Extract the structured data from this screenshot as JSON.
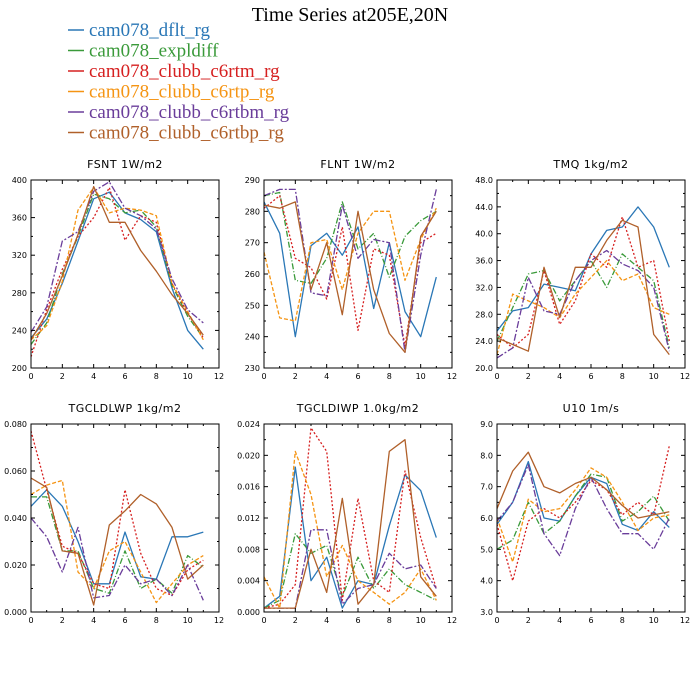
{
  "figure": {
    "title": "Time Series at205E,20N"
  },
  "colors": {
    "cam078_dflt_rg": "#2a77b6",
    "cam078_expldiff": "#3a9a3a",
    "cam078_clubb_c6rtm_rg": "#d62020",
    "cam078_clubb_c6rtp_rg": "#f59413",
    "cam078_clubb_c6rtbm_rg": "#6a3d9a",
    "cam078_clubb_c6rtbp_rg": "#b0602a"
  },
  "legend": [
    {
      "name": "cam078_dflt_rg",
      "color": "#2a77b6",
      "dash": ""
    },
    {
      "name": "cam078_expldiff",
      "color": "#3a9a3a",
      "dash": "6,2,1,2"
    },
    {
      "name": "cam078_clubb_c6rtm_rg",
      "color": "#d62020",
      "dash": "2,2"
    },
    {
      "name": "cam078_clubb_c6rtp_rg",
      "color": "#f59413",
      "dash": "4,2"
    },
    {
      "name": "cam078_clubb_c6rtbm_rg",
      "color": "#6a3d9a",
      "dash": "7,2,2,2"
    },
    {
      "name": "cam078_clubb_c6rtbp_rg",
      "color": "#b0602a",
      "dash": ""
    }
  ],
  "chart_data": [
    {
      "type": "line",
      "title": "FSNT   1W/m2",
      "x": [
        0,
        1,
        2,
        3,
        4,
        5,
        6,
        7,
        8,
        9,
        10,
        11
      ],
      "xlim": [
        0,
        12
      ],
      "xticks": [
        0,
        2,
        4,
        6,
        8,
        10,
        12
      ],
      "ylim": [
        200,
        400
      ],
      "yticks": [
        200,
        240,
        280,
        320,
        360,
        400
      ],
      "ytick_labels": [
        "200",
        "240",
        "280",
        "320",
        "360",
        "400"
      ],
      "series": [
        {
          "name": "cam078_dflt_rg",
          "values": [
            232,
            252,
            290,
            335,
            380,
            387,
            365,
            358,
            345,
            285,
            240,
            220
          ]
        },
        {
          "name": "cam078_expldiff",
          "values": [
            225,
            248,
            300,
            340,
            385,
            380,
            365,
            368,
            350,
            288,
            255,
            232
          ]
        },
        {
          "name": "cam078_clubb_c6rtm_rg",
          "values": [
            212,
            262,
            305,
            340,
            360,
            392,
            336,
            362,
            355,
            290,
            258,
            232
          ]
        },
        {
          "name": "cam078_clubb_c6rtp_rg",
          "values": [
            230,
            245,
            292,
            368,
            392,
            365,
            370,
            368,
            362,
            290,
            260,
            230
          ]
        },
        {
          "name": "cam078_clubb_c6rtbm_rg",
          "values": [
            238,
            265,
            335,
            345,
            388,
            398,
            370,
            362,
            348,
            295,
            262,
            248
          ]
        },
        {
          "name": "cam078_clubb_c6rtbp_rg",
          "values": [
            230,
            258,
            298,
            342,
            393,
            355,
            355,
            325,
            303,
            278,
            258,
            235
          ]
        }
      ]
    },
    {
      "type": "line",
      "title": "FLNT   1W/m2",
      "x": [
        0,
        1,
        2,
        3,
        4,
        5,
        6,
        7,
        8,
        9,
        10,
        11
      ],
      "xlim": [
        0,
        12
      ],
      "xticks": [
        0,
        2,
        4,
        6,
        8,
        10,
        12
      ],
      "ylim": [
        230,
        290
      ],
      "yticks": [
        230,
        240,
        250,
        260,
        270,
        280,
        290
      ],
      "ytick_labels": [
        "230",
        "240",
        "250",
        "260",
        "270",
        "280",
        "290"
      ],
      "series": [
        {
          "name": "cam078_dflt_rg",
          "values": [
            283,
            273,
            240,
            269,
            273,
            266,
            275,
            249,
            270,
            248,
            240,
            259
          ]
        },
        {
          "name": "cam078_expldiff",
          "values": [
            285,
            286,
            258,
            257,
            265,
            283,
            268,
            273,
            259,
            272,
            277,
            280
          ]
        },
        {
          "name": "cam078_clubb_c6rtm_rg",
          "values": [
            281,
            285,
            265,
            262,
            252,
            275,
            242,
            268,
            266,
            237,
            270,
            273
          ]
        },
        {
          "name": "cam078_clubb_c6rtp_rg",
          "values": [
            267,
            246,
            245,
            270,
            271,
            255,
            273,
            280,
            280,
            258,
            271,
            281
          ]
        },
        {
          "name": "cam078_clubb_c6rtbm_rg",
          "values": [
            285,
            287,
            287,
            254,
            253,
            282,
            265,
            271,
            270,
            235,
            266,
            287
          ]
        },
        {
          "name": "cam078_clubb_c6rtbp_rg",
          "values": [
            282,
            281,
            283,
            255,
            270,
            247,
            280,
            255,
            241,
            235,
            272,
            280
          ]
        }
      ]
    },
    {
      "type": "line",
      "title": "TMQ   1kg/m2",
      "x": [
        0,
        1,
        2,
        3,
        4,
        5,
        6,
        7,
        8,
        9,
        10,
        11
      ],
      "xlim": [
        0,
        12
      ],
      "xticks": [
        0,
        2,
        4,
        6,
        8,
        10,
        12
      ],
      "ylim": [
        20,
        48
      ],
      "yticks": [
        20,
        24,
        28,
        32,
        36,
        40,
        44,
        48
      ],
      "ytick_labels": [
        "20.0",
        "24.0",
        "28.0",
        "32.0",
        "36.0",
        "40.0",
        "44.0",
        "48.0"
      ],
      "series": [
        {
          "name": "cam078_dflt_rg",
          "values": [
            25.5,
            28.5,
            29,
            32.5,
            32,
            31.5,
            37,
            40.5,
            41,
            44,
            41,
            35
          ]
        },
        {
          "name": "cam078_expldiff",
          "values": [
            24,
            29,
            34,
            34.5,
            30,
            33,
            36,
            32,
            37,
            35,
            33,
            23
          ]
        },
        {
          "name": "cam078_clubb_c6rtm_rg",
          "values": [
            25,
            23,
            25,
            34.5,
            26.5,
            30,
            37,
            35,
            42.5,
            35,
            36,
            24
          ]
        },
        {
          "name": "cam078_clubb_c6rtp_rg",
          "values": [
            22,
            31,
            30,
            29,
            27.5,
            31,
            33.5,
            36,
            33,
            34,
            29,
            28
          ]
        },
        {
          "name": "cam078_clubb_c6rtbm_rg",
          "values": [
            21.5,
            23,
            33.5,
            28.5,
            28,
            33,
            36,
            37.5,
            35.5,
            34.5,
            32,
            22.5
          ]
        },
        {
          "name": "cam078_clubb_c6rtbp_rg",
          "values": [
            24.5,
            23.5,
            22.5,
            35,
            27.5,
            35,
            35,
            39,
            42,
            41,
            25,
            22
          ]
        }
      ]
    },
    {
      "type": "line",
      "title": "TGCLDLWP   1kg/m2",
      "x": [
        0,
        1,
        2,
        3,
        4,
        5,
        6,
        7,
        8,
        9,
        10,
        11
      ],
      "xlim": [
        0,
        12
      ],
      "xticks": [
        0,
        2,
        4,
        6,
        8,
        10,
        12
      ],
      "ylim": [
        0,
        0.08
      ],
      "yticks": [
        0,
        0.02,
        0.04,
        0.06,
        0.08
      ],
      "ytick_labels": [
        "0.000",
        "0.020",
        "0.040",
        "0.060",
        "0.080"
      ],
      "series": [
        {
          "name": "cam078_dflt_rg",
          "values": [
            0.045,
            0.052,
            0.045,
            0.03,
            0.012,
            0.012,
            0.034,
            0.015,
            0.014,
            0.032,
            0.032,
            0.034
          ]
        },
        {
          "name": "cam078_expldiff",
          "values": [
            0.049,
            0.049,
            0.026,
            0.026,
            0.01,
            0.008,
            0.026,
            0.01,
            0.014,
            0.008,
            0.024,
            0.019
          ]
        },
        {
          "name": "cam078_clubb_c6rtm_rg",
          "values": [
            0.077,
            0.052,
            0.028,
            0.025,
            0.012,
            0.01,
            0.052,
            0.025,
            0.01,
            0.007,
            0.018,
            0.022
          ]
        },
        {
          "name": "cam078_clubb_c6rtp_rg",
          "values": [
            0.05,
            0.054,
            0.056,
            0.017,
            0.01,
            0.026,
            0.03,
            0.017,
            0.004,
            0.012,
            0.02,
            0.024
          ]
        },
        {
          "name": "cam078_clubb_c6rtbm_rg",
          "values": [
            0.04,
            0.032,
            0.017,
            0.036,
            0.006,
            0.007,
            0.02,
            0.012,
            0.014,
            0.007,
            0.02,
            0.005
          ]
        },
        {
          "name": "cam078_clubb_c6rtbp_rg",
          "values": [
            0.057,
            0.053,
            0.026,
            0.025,
            0.003,
            0.037,
            0.043,
            0.05,
            0.046,
            0.036,
            0.014,
            0.02
          ]
        }
      ]
    },
    {
      "type": "line",
      "title": "TGCLDIWP   1.0kg/m2",
      "x": [
        0,
        1,
        2,
        3,
        4,
        5,
        6,
        7,
        8,
        9,
        10,
        11
      ],
      "xlim": [
        0,
        12
      ],
      "xticks": [
        0,
        2,
        4,
        6,
        8,
        10,
        12
      ],
      "ylim": [
        0,
        0.024
      ],
      "yticks": [
        0,
        0.004,
        0.008,
        0.012,
        0.016,
        0.02,
        0.024
      ],
      "ytick_labels": [
        "0.000",
        "0.004",
        "0.008",
        "0.012",
        "0.016",
        "0.020",
        "0.024"
      ],
      "series": [
        {
          "name": "cam078_dflt_rg",
          "values": [
            0.0005,
            0.002,
            0.0185,
            0.004,
            0.007,
            0.0005,
            0.004,
            0.0035,
            0.011,
            0.0175,
            0.0155,
            0.0095
          ]
        },
        {
          "name": "cam078_expldiff",
          "values": [
            0.0005,
            0.0015,
            0.01,
            0.0075,
            0.0085,
            0.002,
            0.007,
            0.003,
            0.0055,
            0.0035,
            0.0025,
            0.0015
          ]
        },
        {
          "name": "cam078_clubb_c6rtm_rg",
          "values": [
            0.0005,
            0.001,
            0.0035,
            0.0235,
            0.0205,
            0.0015,
            0.0145,
            0.004,
            0.0025,
            0.018,
            0.0095,
            0.003
          ]
        },
        {
          "name": "cam078_clubb_c6rtp_rg",
          "values": [
            0.0045,
            0.0005,
            0.0205,
            0.015,
            0.0045,
            0.0085,
            0.004,
            0.0025,
            0.001,
            0.0025,
            0.0055,
            0.0015
          ]
        },
        {
          "name": "cam078_clubb_c6rtbm_rg",
          "values": [
            0.0005,
            0.0005,
            0.0005,
            0.0105,
            0.0105,
            0.001,
            0.003,
            0.0035,
            0.0075,
            0.0055,
            0.006,
            0.003
          ]
        },
        {
          "name": "cam078_clubb_c6rtbp_rg",
          "values": [
            0.0005,
            0.0005,
            0.0005,
            0.008,
            0.0025,
            0.0145,
            0.001,
            0.0035,
            0.0205,
            0.022,
            0.0045,
            0.002
          ]
        }
      ]
    },
    {
      "type": "line",
      "title": "U10   1m/s",
      "x": [
        0,
        1,
        2,
        3,
        4,
        5,
        6,
        7,
        8,
        9,
        10,
        11
      ],
      "xlim": [
        0,
        12
      ],
      "xticks": [
        0,
        2,
        4,
        6,
        8,
        10,
        12
      ],
      "ylim": [
        3,
        9
      ],
      "yticks": [
        3,
        4,
        5,
        6,
        7,
        8,
        9
      ],
      "ytick_labels": [
        "3.0",
        "4.0",
        "5.0",
        "6.0",
        "7.0",
        "8.0",
        "9.0"
      ],
      "series": [
        {
          "name": "cam078_dflt_rg",
          "values": [
            5.8,
            6.5,
            7.8,
            6.0,
            5.9,
            6.7,
            7.3,
            7.1,
            5.8,
            5.6,
            6.2,
            5.7
          ]
        },
        {
          "name": "cam078_expldiff",
          "values": [
            5.0,
            5.3,
            6.5,
            5.5,
            5.9,
            6.7,
            7.4,
            7.3,
            5.9,
            6.2,
            6.7,
            5.9
          ]
        },
        {
          "name": "cam078_clubb_c6rtm_rg",
          "values": [
            5.8,
            4.0,
            5.9,
            6.3,
            6.0,
            6.5,
            7.2,
            6.9,
            6.1,
            6.5,
            6.1,
            8.3
          ]
        },
        {
          "name": "cam078_clubb_c6rtp_rg",
          "values": [
            6.0,
            4.6,
            6.6,
            6.2,
            6.3,
            6.9,
            7.6,
            7.3,
            6.5,
            5.6,
            6.0,
            6.1
          ]
        },
        {
          "name": "cam078_clubb_c6rtbm_rg",
          "values": [
            5.9,
            6.5,
            7.7,
            5.5,
            4.8,
            6.3,
            7.3,
            6.3,
            5.5,
            5.5,
            5.0,
            6.0
          ]
        },
        {
          "name": "cam078_clubb_c6rtbp_rg",
          "values": [
            6.3,
            7.5,
            8.1,
            7.0,
            6.8,
            7.1,
            7.3,
            6.9,
            6.4,
            6.0,
            6.1,
            6.2
          ]
        }
      ]
    }
  ]
}
